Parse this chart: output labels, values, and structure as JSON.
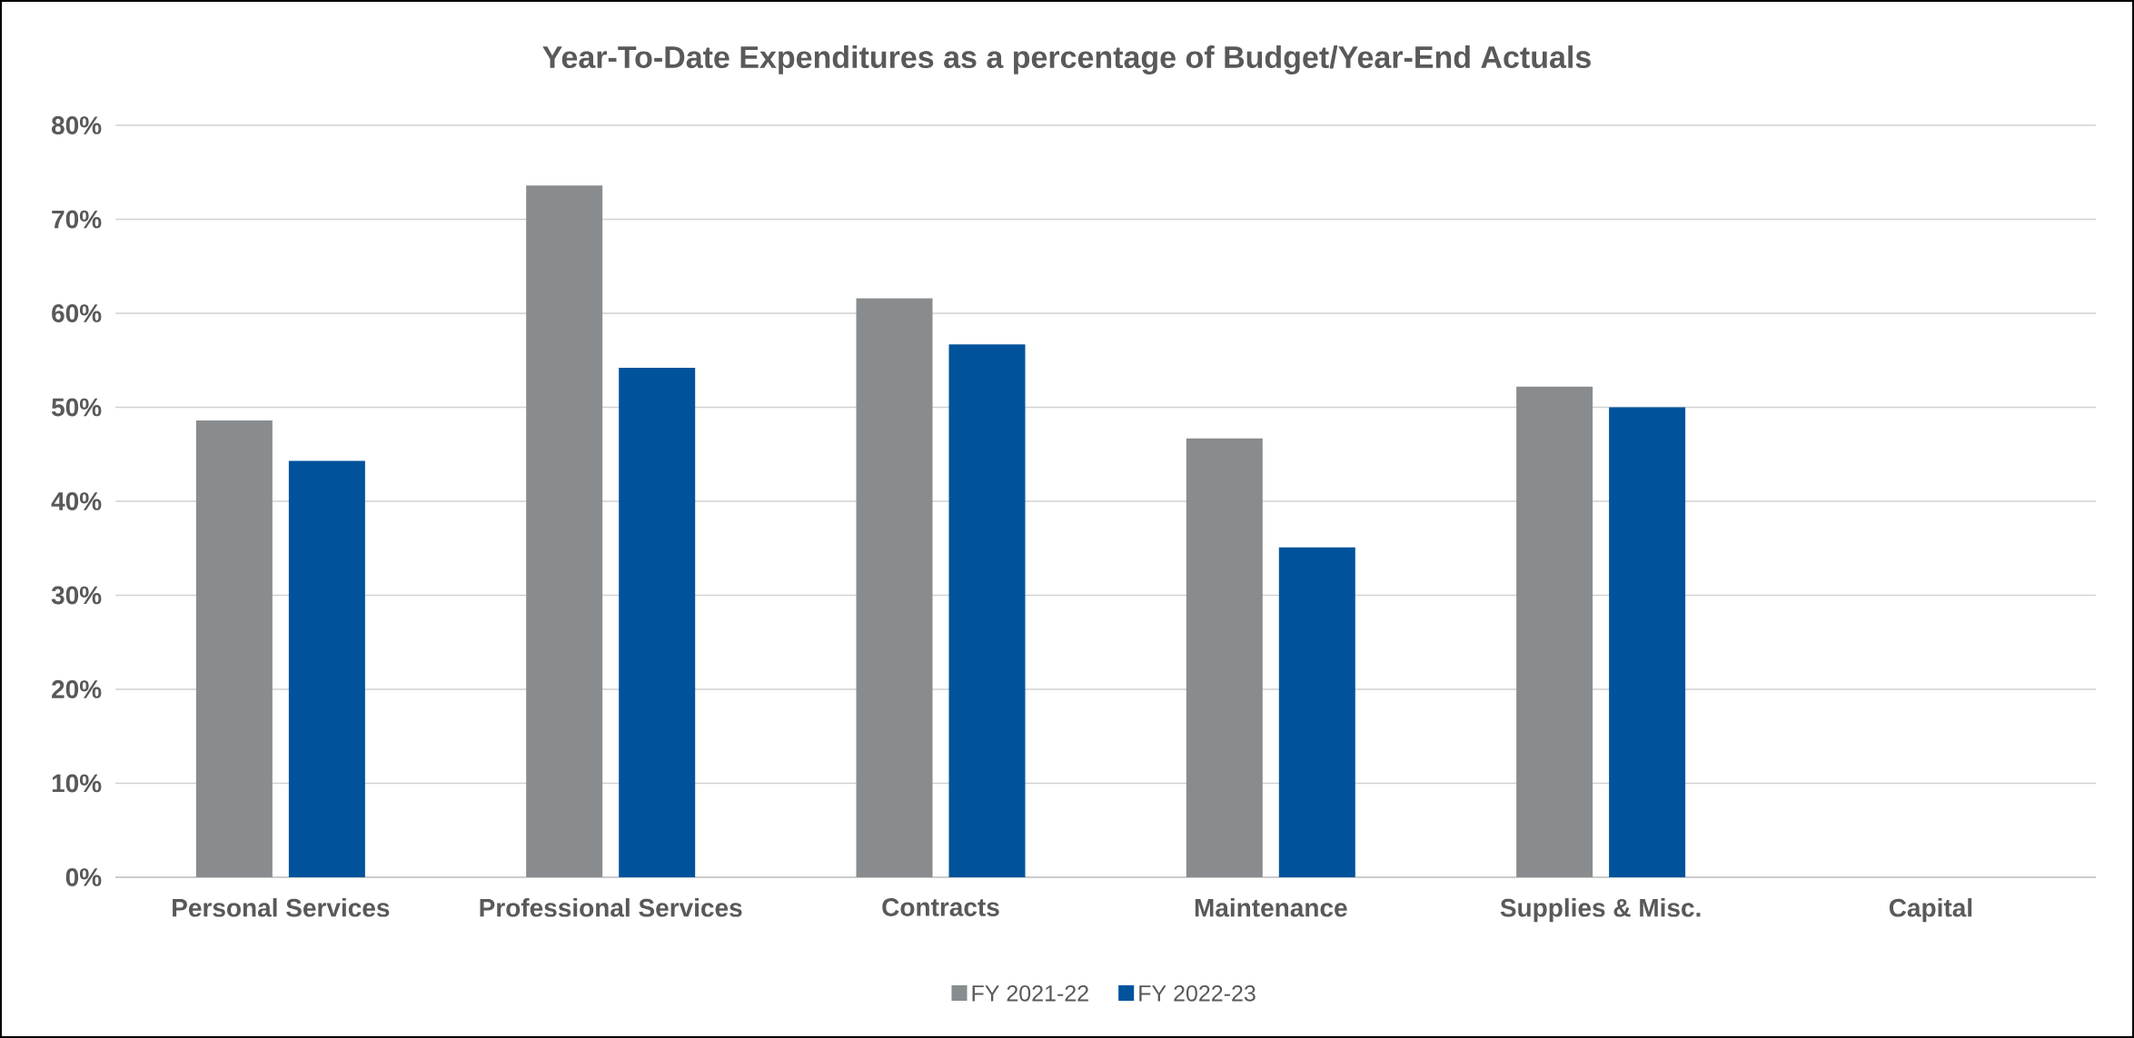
{
  "chart_data": {
    "type": "bar",
    "title": "Year-To-Date  Expenditures as a percentage of Budget/Year-End Actuals",
    "categories": [
      "Personal Services",
      "Professional Services",
      "Contracts",
      "Maintenance",
      "Supplies & Misc.",
      "Capital"
    ],
    "series": [
      {
        "name": "FY 2021-22",
        "color": "#898c8e",
        "values": [
          48.6,
          73.6,
          61.6,
          46.7,
          52.2,
          null
        ]
      },
      {
        "name": "FY 2022-23",
        "color": "#00539b",
        "values": [
          44.3,
          54.2,
          56.7,
          35.1,
          50.0,
          null
        ]
      }
    ],
    "ylim": [
      0,
      80
    ],
    "yticks": [
      {
        "value": 0,
        "label": "0%"
      },
      {
        "value": 10,
        "label": "10%"
      },
      {
        "value": 20,
        "label": "20%"
      },
      {
        "value": 30,
        "label": "30%"
      },
      {
        "value": 40,
        "label": "40%"
      },
      {
        "value": 50,
        "label": "50%"
      },
      {
        "value": 60,
        "label": "60%"
      },
      {
        "value": 70,
        "label": "70%"
      },
      {
        "value": 80,
        "label": "80%"
      }
    ],
    "grid": "y",
    "legend": "bottom"
  }
}
